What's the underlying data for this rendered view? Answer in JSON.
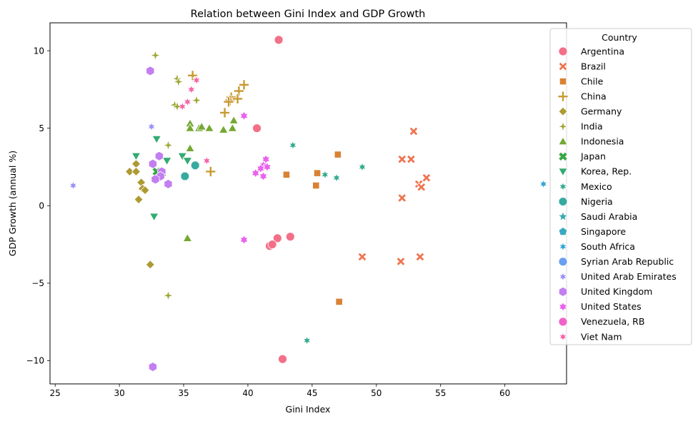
{
  "chart_data": {
    "type": "scatter",
    "title": "Relation between Gini Index and GDP Growth",
    "xlabel": "Gini Index",
    "ylabel": "GDP Growth (annual %)",
    "xlim": [
      24.6,
      64.8
    ],
    "ylim": [
      -11.5,
      11.8
    ],
    "xticks": [
      25,
      30,
      35,
      40,
      45,
      50,
      55,
      60
    ],
    "yticks": [
      -10,
      -5,
      0,
      5,
      10
    ],
    "ytick_labels": [
      "−10",
      "−5",
      "0",
      "5",
      "10"
    ],
    "grid": false,
    "legend": {
      "title": "Country",
      "placement": "upper-right"
    },
    "series": [
      {
        "name": "Argentina",
        "marker": "circle",
        "color": "#f37088",
        "points": [
          [
            42.4,
            10.7
          ],
          [
            40.7,
            5.0
          ],
          [
            42.3,
            -2.1
          ],
          [
            43.3,
            -2.0
          ],
          [
            41.7,
            -2.6
          ],
          [
            41.9,
            -2.5
          ],
          [
            42.7,
            -9.9
          ]
        ]
      },
      {
        "name": "Brazil",
        "marker": "x",
        "color": "#ee7450",
        "points": [
          [
            52.9,
            4.8
          ],
          [
            52.0,
            3.0
          ],
          [
            52.7,
            3.0
          ],
          [
            53.9,
            1.8
          ],
          [
            53.3,
            1.4
          ],
          [
            53.5,
            1.2
          ],
          [
            52.0,
            0.5
          ],
          [
            48.9,
            -3.3
          ],
          [
            51.9,
            -3.6
          ],
          [
            53.4,
            -3.3
          ]
        ]
      },
      {
        "name": "Chile",
        "marker": "square",
        "color": "#d98233",
        "points": [
          [
            47.0,
            3.3
          ],
          [
            43.0,
            2.0
          ],
          [
            45.4,
            2.1
          ],
          [
            45.3,
            1.3
          ],
          [
            47.1,
            -6.2
          ]
        ]
      },
      {
        "name": "China",
        "marker": "plus",
        "color": "#c99a33",
        "points": [
          [
            35.7,
            8.4
          ],
          [
            39.7,
            7.8
          ],
          [
            39.3,
            7.4
          ],
          [
            38.7,
            7.0
          ],
          [
            38.6,
            6.8
          ],
          [
            39.2,
            6.9
          ],
          [
            38.5,
            6.7
          ],
          [
            38.2,
            6.0
          ],
          [
            37.1,
            2.2
          ]
        ]
      },
      {
        "name": "Germany",
        "marker": "diamond",
        "color": "#ad9a32",
        "points": [
          [
            31.3,
            2.7
          ],
          [
            30.8,
            2.2
          ],
          [
            31.3,
            2.2
          ],
          [
            31.7,
            1.5
          ],
          [
            31.8,
            1.1
          ],
          [
            32.0,
            1.0
          ],
          [
            31.5,
            0.4
          ],
          [
            32.4,
            -3.8
          ]
        ]
      },
      {
        "name": "India",
        "marker": "star4",
        "color": "#9da734",
        "points": [
          [
            32.8,
            9.7
          ],
          [
            34.5,
            8.2
          ],
          [
            34.6,
            8.0
          ],
          [
            36.0,
            6.8
          ],
          [
            34.3,
            6.5
          ],
          [
            34.5,
            6.4
          ],
          [
            33.8,
            3.9
          ],
          [
            33.8,
            -5.8
          ]
        ]
      },
      {
        "name": "Indonesia",
        "marker": "triangle-up",
        "color": "#74a832",
        "points": [
          [
            35.5,
            5.3
          ],
          [
            35.5,
            5.0
          ],
          [
            36.2,
            5.0
          ],
          [
            36.4,
            5.1
          ],
          [
            37.0,
            5.0
          ],
          [
            38.1,
            4.9
          ],
          [
            38.8,
            5.0
          ],
          [
            38.9,
            5.5
          ],
          [
            35.5,
            3.7
          ],
          [
            35.3,
            -2.1
          ]
        ]
      },
      {
        "name": "Japan",
        "marker": "x-bold",
        "color": "#38a644",
        "points": [
          [
            32.9,
            2.2
          ],
          [
            33.3,
            2.1
          ]
        ]
      },
      {
        "name": "Korea, Rep.",
        "marker": "triangle-down",
        "color": "#33ab71",
        "points": [
          [
            31.3,
            3.2
          ],
          [
            32.9,
            4.3
          ],
          [
            33.7,
            2.9
          ],
          [
            34.9,
            3.2
          ],
          [
            35.3,
            2.9
          ],
          [
            32.7,
            -0.7
          ]
        ]
      },
      {
        "name": "Mexico",
        "marker": "star6",
        "color": "#35ab90",
        "points": [
          [
            43.5,
            3.9
          ],
          [
            46.0,
            2.0
          ],
          [
            46.9,
            1.8
          ],
          [
            48.9,
            2.5
          ],
          [
            44.6,
            -8.7
          ]
        ]
      },
      {
        "name": "Nigeria",
        "marker": "octagon",
        "color": "#37aaa0",
        "points": [
          [
            35.1,
            1.9
          ],
          [
            35.9,
            2.6
          ]
        ]
      },
      {
        "name": "Saudi Arabia",
        "marker": "star5",
        "color": "#38a9b0",
        "points": []
      },
      {
        "name": "Singapore",
        "marker": "pentagon",
        "color": "#3aa8c0",
        "points": []
      },
      {
        "name": "South Africa",
        "marker": "star6",
        "color": "#39a4d6",
        "points": [
          [
            63.0,
            1.4
          ]
        ]
      },
      {
        "name": "Syrian Arab Republic",
        "marker": "circle",
        "color": "#6a9ff2",
        "points": []
      },
      {
        "name": "United Arab Emirates",
        "marker": "star6",
        "color": "#9a92f5",
        "points": [
          [
            32.5,
            5.1
          ],
          [
            26.4,
            1.3
          ]
        ]
      },
      {
        "name": "United Kingdom",
        "marker": "hexagon",
        "color": "#c37ef1",
        "points": [
          [
            32.4,
            8.7
          ],
          [
            33.1,
            3.2
          ],
          [
            32.6,
            2.7
          ],
          [
            33.3,
            2.2
          ],
          [
            33.2,
            1.9
          ],
          [
            32.8,
            1.7
          ],
          [
            33.8,
            1.4
          ],
          [
            32.6,
            -10.4
          ]
        ]
      },
      {
        "name": "United States",
        "marker": "star6-fat",
        "color": "#ea62ed",
        "points": [
          [
            39.7,
            5.8
          ],
          [
            41.4,
            3.0
          ],
          [
            41.2,
            2.6
          ],
          [
            41.0,
            2.4
          ],
          [
            41.5,
            2.5
          ],
          [
            40.6,
            2.1
          ],
          [
            41.2,
            1.9
          ],
          [
            39.7,
            -2.2
          ]
        ]
      },
      {
        "name": "Venezuela, RB",
        "marker": "circle",
        "color": "#f062c9",
        "points": []
      },
      {
        "name": "Viet Nam",
        "marker": "star6",
        "color": "#f466a9",
        "points": [
          [
            36.0,
            8.1
          ],
          [
            35.6,
            7.5
          ],
          [
            35.3,
            6.7
          ],
          [
            34.9,
            6.4
          ],
          [
            36.8,
            2.9
          ]
        ]
      }
    ]
  }
}
